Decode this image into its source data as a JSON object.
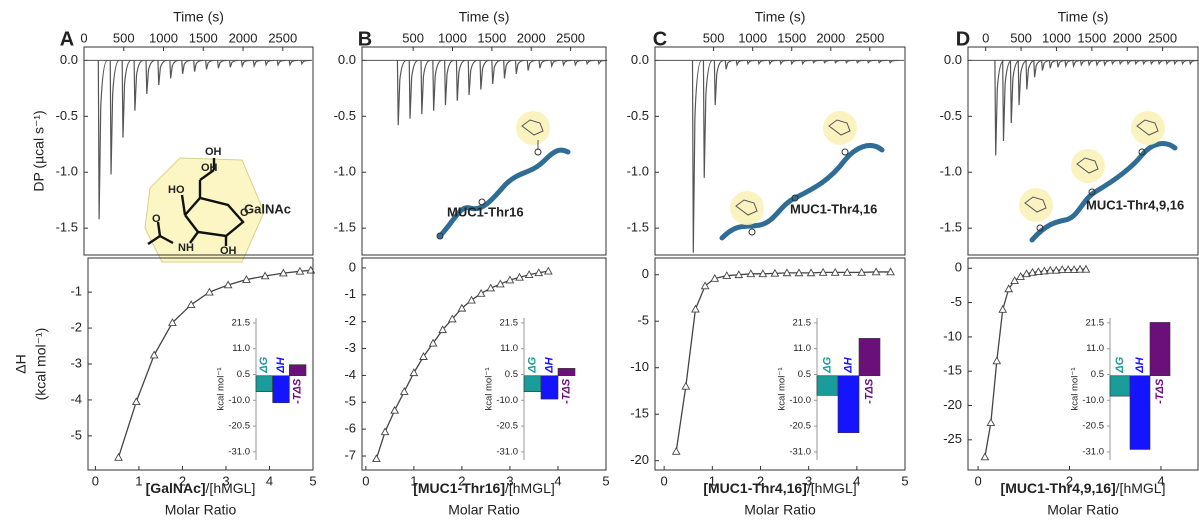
{
  "chart_data": [
    {
      "type": "thermogram",
      "panel_label": "A",
      "xlabel": "Time (s)",
      "ylabel": "DP (µcal s⁻¹)",
      "molecule_label": "GalNAc",
      "color": "#555555",
      "x": [
        180,
        330,
        480,
        630,
        780,
        930,
        1080,
        1230,
        1380,
        1530,
        1680,
        1830,
        1980,
        2130,
        2280,
        2430,
        2580,
        2730
      ],
      "values": [
        -1.42,
        -1.02,
        -0.69,
        -0.45,
        -0.3,
        -0.22,
        -0.16,
        -0.12,
        -0.1,
        -0.08,
        -0.07,
        -0.06,
        -0.05,
        -0.05,
        -0.04,
        -0.04,
        -0.04,
        -0.03
      ],
      "xlim": [
        0,
        2880
      ],
      "xticks": [
        0,
        500,
        1000,
        1500,
        2000,
        2500
      ],
      "ylim": [
        -1.74,
        0.12
      ],
      "yticks": [
        {
          "value": 0,
          "label": "0.0"
        },
        -0.5,
        {
          "value": -1,
          "label": "-1.0"
        },
        -1.5
      ]
    },
    {
      "type": "isotherm",
      "ylabel": "ΔH",
      "ylabel_unit": "(kcal mol⁻¹)",
      "xlabel_bold": "[GalNAc]",
      "xlabel_rest": "/[hMGL]",
      "xlabel2": "Molar Ratio",
      "color": "#444444",
      "x": [
        0.53,
        0.94,
        1.35,
        1.77,
        2.2,
        2.62,
        3.05,
        3.47,
        3.9,
        4.32,
        4.7,
        4.95
      ],
      "values": [
        -5.6,
        -4.05,
        -2.75,
        -1.85,
        -1.35,
        -1.0,
        -0.8,
        -0.65,
        -0.55,
        -0.47,
        -0.42,
        -0.39
      ],
      "xlim": [
        -0.17,
        5.0
      ],
      "xticks": [
        0,
        1,
        2,
        3,
        4,
        5
      ],
      "ylim": [
        -5.95,
        -0.05
      ],
      "yticks": [
        -1,
        -2,
        -3,
        -4,
        -5
      ]
    },
    {
      "type": "bar",
      "ylabel": "kcal mol⁻¹",
      "categories": [
        "ΔG",
        "ΔH",
        "-TΔS"
      ],
      "colors": [
        "#1a9c9a",
        "#1414ff",
        "#6b0f7a"
      ],
      "values": [
        -6.5,
        -11.0,
        4.5
      ],
      "ylim": [
        -34.3,
        23.5
      ],
      "yticks": [
        21.5,
        {
          "value": 11,
          "label": "11.0"
        },
        0.5,
        {
          "value": -10,
          "label": "-10.0"
        },
        -20.5,
        {
          "value": -31,
          "label": "-31.0"
        }
      ]
    },
    {
      "type": "thermogram",
      "panel_label": "B",
      "xlabel": "Time (s)",
      "molecule_label": "MUC1-Thr16",
      "color": "#555555",
      "x": [
        300,
        450,
        600,
        750,
        900,
        1050,
        1200,
        1350,
        1500,
        1650,
        1800,
        1950,
        2100,
        2250,
        2400,
        2550,
        2700,
        2850
      ],
      "values": [
        -0.58,
        -0.52,
        -0.48,
        -0.45,
        -0.4,
        -0.36,
        -0.31,
        -0.26,
        -0.21,
        -0.16,
        -0.12,
        -0.09,
        -0.07,
        -0.05,
        -0.04,
        -0.04,
        -0.03,
        -0.03
      ],
      "xlim": [
        -150,
        2950
      ],
      "xticks": [
        500,
        1000,
        1500,
        2000,
        2500
      ],
      "ylim": [
        -1.74,
        0.12
      ],
      "yticks": [
        {
          "value": 0,
          "label": "0.0"
        },
        -0.5,
        {
          "value": -1,
          "label": "-1.0"
        },
        -1.5
      ]
    },
    {
      "type": "isotherm",
      "xlabel_bold": "[MUC1-Thr16]",
      "xlabel_rest": "/[hMGL]",
      "xlabel2": "Molar Ratio",
      "color": "#444444",
      "x": [
        0.22,
        0.4,
        0.6,
        0.8,
        1.0,
        1.2,
        1.4,
        1.6,
        1.8,
        2.0,
        2.2,
        2.4,
        2.6,
        2.8,
        3.0,
        3.2,
        3.4,
        3.6,
        3.8
      ],
      "values": [
        -7.1,
        -6.1,
        -5.3,
        -4.6,
        -3.9,
        -3.3,
        -2.8,
        -2.3,
        -1.9,
        -1.5,
        -1.2,
        -0.95,
        -0.75,
        -0.6,
        -0.45,
        -0.35,
        -0.25,
        -0.18,
        -0.12
      ],
      "xlim": [
        -0.08,
        5.0
      ],
      "xticks": [
        0,
        1,
        2,
        3,
        4,
        5
      ],
      "ylim": [
        -7.52,
        0.37
      ],
      "yticks": [
        0,
        -1,
        -2,
        -3,
        -4,
        -5,
        -6,
        -7
      ]
    },
    {
      "type": "bar",
      "ylabel": "kcal mol⁻¹",
      "categories": [
        "ΔG",
        "ΔH",
        "-TΔS"
      ],
      "colors": [
        "#1a9c9a",
        "#1414ff",
        "#6b0f7a"
      ],
      "values": [
        -6.5,
        -9.5,
        3.0
      ],
      "ylim": [
        -34.3,
        23.5
      ],
      "yticks": [
        21.5,
        {
          "value": 11,
          "label": "11.0"
        },
        0.5,
        {
          "value": -10,
          "label": "-10.0"
        },
        -20.5,
        {
          "value": -31,
          "label": "-31.0"
        }
      ]
    },
    {
      "type": "thermogram",
      "panel_label": "C",
      "xlabel": "Time (s)",
      "molecule_label": "MUC1-Thr4,16",
      "color": "#555555",
      "x": [
        230,
        370,
        510,
        650,
        790,
        930,
        1070,
        1210,
        1350,
        1490,
        1630,
        1770,
        1910,
        2050,
        2190,
        2330,
        2470,
        2610,
        2750
      ],
      "values": [
        -1.72,
        -1.05,
        -0.4,
        -0.08,
        -0.04,
        -0.03,
        -0.03,
        -0.03,
        -0.03,
        -0.03,
        -0.03,
        -0.02,
        -0.02,
        -0.02,
        -0.02,
        -0.02,
        -0.02,
        -0.02,
        -0.02
      ],
      "xlim": [
        -250,
        2950
      ],
      "xticks": [
        500,
        1000,
        1500,
        2000,
        2500
      ],
      "ylim": [
        -1.74,
        0.12
      ],
      "yticks": [
        {
          "value": 0,
          "label": "0.0"
        },
        -0.5,
        {
          "value": -1,
          "label": "-1.0"
        },
        -1.5
      ]
    },
    {
      "type": "isotherm",
      "xlabel_bold": "[MUC1-Thr4,16]",
      "xlabel_rest": "/[hMGL]",
      "xlabel2": "Molar Ratio",
      "color": "#444444",
      "x": [
        0.25,
        0.45,
        0.65,
        0.85,
        1.05,
        1.3,
        1.55,
        1.8,
        2.05,
        2.3,
        2.55,
        2.8,
        3.05,
        3.3,
        3.55,
        3.8,
        4.1,
        4.4,
        4.7
      ],
      "values": [
        -19.0,
        -12.0,
        -3.7,
        -1.2,
        -0.4,
        -0.1,
        0,
        0.1,
        0.1,
        0.15,
        0.2,
        0.2,
        0.2,
        0.25,
        0.25,
        0.25,
        0.25,
        0.3,
        0.3
      ],
      "xlim": [
        -0.19,
        5.0
      ],
      "xticks": [
        0,
        1,
        2,
        3,
        4,
        5
      ],
      "ylim": [
        -21,
        1.8
      ],
      "yticks": [
        0,
        -5,
        -10,
        -15,
        -20
      ]
    },
    {
      "type": "bar",
      "ylabel": "kcal mol⁻¹",
      "categories": [
        "ΔG",
        "ΔH",
        "-TΔS"
      ],
      "colors": [
        "#1a9c9a",
        "#1414ff",
        "#6b0f7a"
      ],
      "values": [
        -8.0,
        -23.2,
        15.2
      ],
      "ylim": [
        -34.3,
        23.5
      ],
      "yticks": [
        21.5,
        {
          "value": 11,
          "label": "11.0"
        },
        0.5,
        {
          "value": -10,
          "label": "-10.0"
        },
        -20.5,
        {
          "value": -31,
          "label": "-31.0"
        }
      ]
    },
    {
      "type": "thermogram",
      "panel_label": "D",
      "xlabel": "Time (s)",
      "molecule_label": "MUC1-Thr4,9,16",
      "color": "#555555",
      "x": [
        130,
        240,
        350,
        460,
        570,
        680,
        790,
        900,
        1010,
        1120,
        1230,
        1340,
        1450,
        1560,
        1670,
        1780,
        1890,
        2000,
        2110,
        2220,
        2330,
        2440,
        2550,
        2660,
        2770,
        2880
      ],
      "values": [
        -0.85,
        -0.72,
        -0.56,
        -0.4,
        -0.26,
        -0.15,
        -0.09,
        -0.07,
        -0.06,
        -0.05,
        -0.05,
        -0.04,
        -0.04,
        -0.04,
        -0.04,
        -0.03,
        -0.03,
        -0.03,
        -0.03,
        -0.03,
        -0.03,
        -0.03,
        -0.03,
        -0.03,
        -0.03,
        -0.03
      ],
      "xlim": [
        -250,
        3000
      ],
      "xticks": [
        0,
        500,
        1000,
        1500,
        2000,
        2500
      ],
      "ylim": [
        -1.74,
        0.12
      ],
      "yticks": [
        {
          "value": 0,
          "label": "0.0"
        },
        -0.5,
        {
          "value": -1,
          "label": "-1.0"
        },
        -1.5
      ]
    },
    {
      "type": "isotherm",
      "xlabel_bold": "[MUC1-Thr4,9,16]",
      "xlabel_rest": "/[hMGL]",
      "xlabel2": "Molar Ratio",
      "color": "#444444",
      "x": [
        0.15,
        0.28,
        0.41,
        0.54,
        0.67,
        0.8,
        0.93,
        1.06,
        1.19,
        1.32,
        1.45,
        1.58,
        1.71,
        1.84,
        1.97,
        2.1,
        2.23,
        2.36
      ],
      "values": [
        -27.5,
        -22.5,
        -13.5,
        -6.0,
        -3.0,
        -1.8,
        -1.2,
        -0.8,
        -0.6,
        -0.5,
        -0.4,
        -0.3,
        -0.3,
        -0.2,
        -0.2,
        -0.2,
        -0.15,
        -0.15
      ],
      "xlim": [
        -0.22,
        4.81
      ],
      "xticks": [
        0,
        2,
        4
      ],
      "ylim": [
        -29.4,
        1.5
      ],
      "yticks": [
        0,
        -5,
        -10,
        -15,
        -20,
        -25
      ]
    },
    {
      "type": "bar",
      "ylabel": "kcal mol⁻¹",
      "categories": [
        "ΔG",
        "ΔH",
        "-TΔS"
      ],
      "colors": [
        "#1a9c9a",
        "#1414ff",
        "#6b0f7a"
      ],
      "values": [
        -8.3,
        -30.0,
        21.7
      ],
      "ylim": [
        -34.3,
        23.5
      ],
      "yticks": [
        21.5,
        {
          "value": 11,
          "label": "11.0"
        },
        0.5,
        {
          "value": -10,
          "label": "-10.0"
        },
        -20.5,
        {
          "value": -31,
          "label": "-31.0"
        }
      ]
    }
  ]
}
